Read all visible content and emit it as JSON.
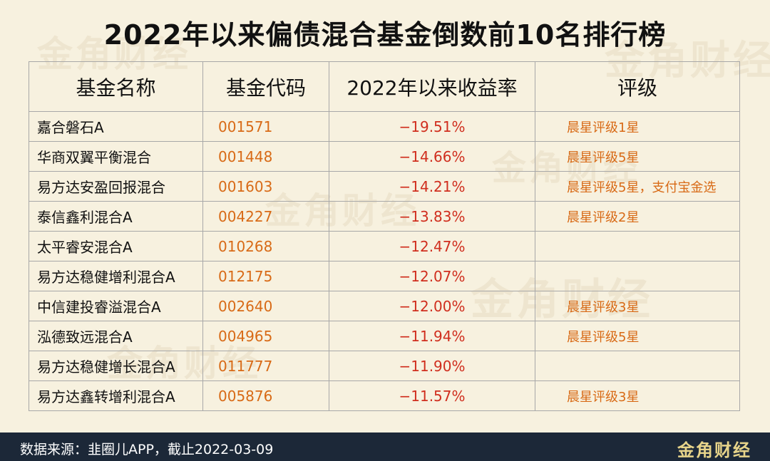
{
  "title": "2022年以来偏债混合基金倒数前10名排行榜",
  "headers": {
    "name": "基金名称",
    "code": "基金代码",
    "return": "2022年以来收益率",
    "rating": "评级"
  },
  "rows": [
    {
      "name": "嘉合磐石A",
      "code": "001571",
      "return": "−19.51%",
      "rating": "晨星评级1星"
    },
    {
      "name": "华商双翼平衡混合",
      "code": "001448",
      "return": "−14.66%",
      "rating": "晨星评级5星"
    },
    {
      "name": "易方达安盈回报混合",
      "code": "001603",
      "return": "−14.21%",
      "rating": "晨星评级5星，支付宝金选"
    },
    {
      "name": "泰信鑫利混合A",
      "code": "004227",
      "return": "−13.83%",
      "rating": "晨星评级2星"
    },
    {
      "name": "太平睿安混合A",
      "code": "010268",
      "return": "−12.47%",
      "rating": ""
    },
    {
      "name": "易方达稳健增利混合A",
      "code": "012175",
      "return": "−12.07%",
      "rating": ""
    },
    {
      "name": "中信建投睿溢混合A",
      "code": "002640",
      "return": "−12.00%",
      "rating": "晨星评级3星"
    },
    {
      "name": "泓德致远混合A",
      "code": "004965",
      "return": "−11.94%",
      "rating": "晨星评级5星"
    },
    {
      "name": "易方达稳健增长混合A",
      "code": "011777",
      "return": "−11.90%",
      "rating": ""
    },
    {
      "name": "易方达鑫转增利混合A",
      "code": "005876",
      "return": "−11.57%",
      "rating": "晨星评级3星"
    }
  ],
  "footer": {
    "source": "数据来源：韭圈儿APP，截止2022-03-09",
    "logo": "金角财经"
  },
  "watermark": "金角财经",
  "colors": {
    "background": "#f7f1df",
    "code_text": "#d86a16",
    "return_text": "#d02e1e",
    "rating_text": "#d86a16",
    "footer_bg": "#1c2838",
    "logo_text": "#e7d48a"
  }
}
